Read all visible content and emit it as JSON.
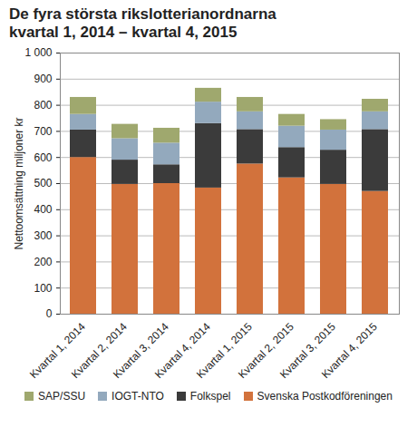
{
  "chart_data": {
    "type": "bar",
    "stacked": true,
    "title": [
      "De fyra största rikslotterianordnarna",
      "kvartal 1, 2014 – kvartal 4, 2015"
    ],
    "y_label": "Nettoomsättning miljoner kr",
    "categories": [
      "Kvartal 1, 2014",
      "Kvartal 2, 2014",
      "Kvartal 3, 2014",
      "Kvartal 4, 2014",
      "Kvartal 1, 2015",
      "Kvartal 2, 2015",
      "Kvartal 3, 2015",
      "Kvartal 4, 2015"
    ],
    "series": [
      {
        "name": "Svenska Postkodföreningen",
        "color": "#d2723c",
        "values": [
          600,
          497,
          500,
          483,
          575,
          522,
          497,
          470
        ]
      },
      {
        "name": "Folkspel",
        "color": "#3b3b3b",
        "values": [
          105,
          93,
          72,
          247,
          132,
          116,
          131,
          237
        ]
      },
      {
        "name": "IOGT-NTO",
        "color": "#93a9bd",
        "values": [
          60,
          82,
          83,
          82,
          68,
          82,
          77,
          68
        ]
      },
      {
        "name": "SAP/SSU",
        "color": "#9fa86e",
        "values": [
          65,
          55,
          57,
          53,
          55,
          45,
          40,
          48
        ]
      }
    ],
    "ylim": [
      0,
      1000
    ],
    "yticks": [
      0,
      100,
      200,
      300,
      400,
      500,
      600,
      700,
      800,
      900,
      {
        "value": 1000,
        "label": "1 000"
      }
    ],
    "grid": true,
    "legend": "bottom"
  }
}
